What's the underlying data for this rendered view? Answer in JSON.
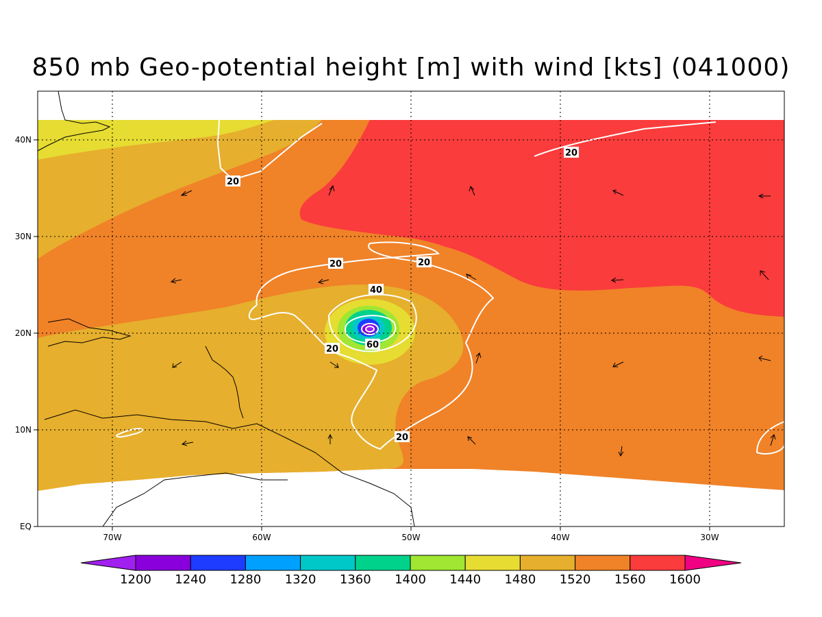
{
  "title": "850 mb Geo-potential height [m] with wind [kts] (041000)",
  "axes": {
    "lon_ticks": [
      "70W",
      "60W",
      "50W",
      "40W",
      "30W"
    ],
    "lat_ticks": [
      "EQ",
      "10N",
      "20N",
      "30N",
      "40N"
    ],
    "lon_range": [
      -75,
      -25
    ],
    "lat_range": [
      0,
      45
    ]
  },
  "colorbar": {
    "levels": [
      "1200",
      "1240",
      "1280",
      "1320",
      "1360",
      "1400",
      "1440",
      "1480",
      "1520",
      "1560",
      "1600"
    ],
    "colors": [
      "#a020f0",
      "#8a00dc",
      "#1e3cff",
      "#00a0ff",
      "#00c8c8",
      "#00d28c",
      "#a0e632",
      "#e6dc32",
      "#e6af2d",
      "#f08228",
      "#fa3c3c",
      "#f00082"
    ]
  },
  "wind_contours": {
    "labels": [
      "20",
      "20",
      "20",
      "20",
      "20",
      "40",
      "60",
      "20"
    ]
  },
  "chart_data": {
    "type": "heatmap",
    "title": "850 mb Geo-potential height [m] with wind [kts] (041000)",
    "variable": "850 mb geopotential height",
    "units": "m",
    "contour_variable": "wind",
    "contour_units": "kts",
    "xlim": [
      "75W",
      "25W"
    ],
    "ylim": [
      "EQ",
      "45N"
    ],
    "x_ticks": [
      "70W",
      "60W",
      "50W",
      "40W",
      "30W"
    ],
    "y_ticks": [
      "EQ",
      "10N",
      "20N",
      "30N",
      "40N"
    ],
    "color_levels": [
      1200,
      1240,
      1280,
      1320,
      1360,
      1400,
      1440,
      1480,
      1520,
      1560,
      1600
    ],
    "contour_levels": [
      20,
      40,
      60
    ],
    "cyclone_center": {
      "lon": -52.5,
      "lat": 20.5,
      "min_height_approx": 1200
    },
    "grid": true
  }
}
